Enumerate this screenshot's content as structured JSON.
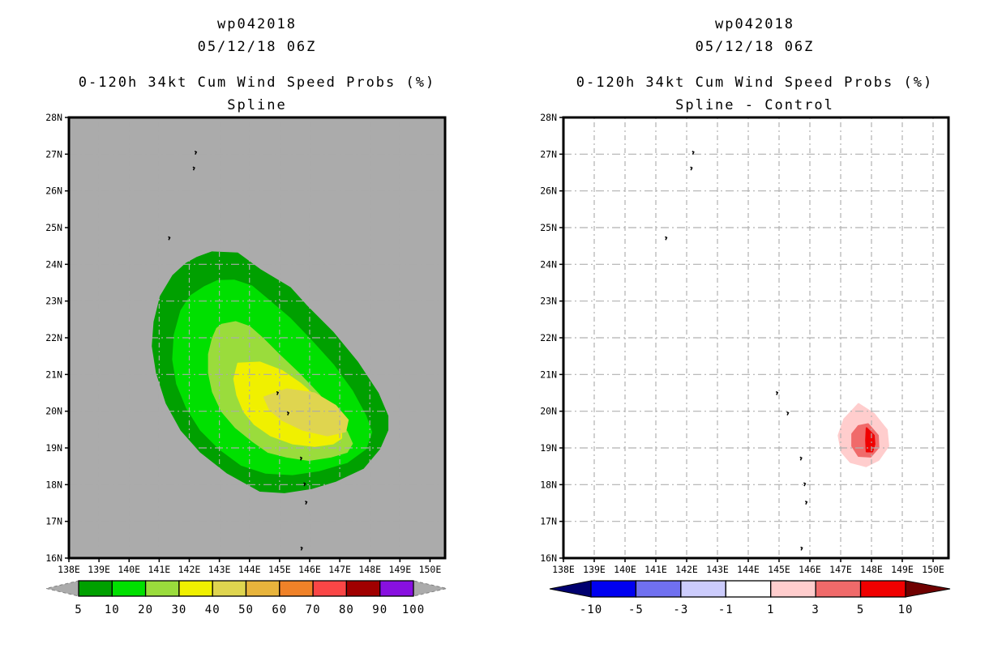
{
  "page": {
    "background": "#ffffff"
  },
  "chart_data": {
    "type": "contour-map",
    "description": "Two-panel tropical cyclone cumulative wind speed probability contour maps with colorbars",
    "lon_min": 138,
    "lon_max": 150.5,
    "lat_min": 16,
    "lat_max": 28,
    "x_tick_lons": [
      138,
      139,
      140,
      141,
      142,
      143,
      144,
      145,
      146,
      147,
      148,
      149,
      150
    ],
    "x_tick_labels": [
      "138E",
      "139E",
      "140E",
      "141E",
      "142E",
      "143E",
      "144E",
      "145E",
      "146E",
      "147E",
      "148E",
      "149E",
      "150E"
    ],
    "y_tick_lats": [
      28,
      27,
      26,
      25,
      24,
      23,
      22,
      21,
      20,
      19,
      18,
      17,
      16
    ],
    "y_tick_labels": [
      "28N",
      "27N",
      "26N",
      "25N",
      "24N",
      "23N",
      "22N",
      "21N",
      "20N",
      "19N",
      "18N",
      "17N",
      "16N"
    ],
    "grid_lons": [
      139,
      140,
      141,
      142,
      143,
      144,
      145,
      146,
      147,
      148,
      149,
      150
    ],
    "grid_lats": [
      17,
      18,
      19,
      20,
      21,
      22,
      23,
      24,
      25,
      26,
      27
    ],
    "islands": [
      [
        142.18,
        27.08
      ],
      [
        142.12,
        26.65
      ],
      [
        141.3,
        24.75
      ],
      [
        144.9,
        20.53
      ],
      [
        145.25,
        19.98
      ],
      [
        145.68,
        18.75
      ],
      [
        145.8,
        18.05
      ],
      [
        145.85,
        17.55
      ],
      [
        145.7,
        16.3
      ]
    ],
    "panels": [
      {
        "titles": {
          "line1": "wp042018",
          "line2": "05/12/18 06Z",
          "line3": "0-120h 34kt Cum Wind Speed Probs (%)",
          "line4": "Spline"
        },
        "map_background": "#ABABAB",
        "grid_color": "#ABABAB",
        "frame_color": "#000000",
        "contours": [
          {
            "level": "5",
            "color": "#00A000",
            "points": [
              [
                142.25,
                24.18
              ],
              [
                142.75,
                24.33
              ],
              [
                143.6,
                24.3
              ],
              [
                144.35,
                23.85
              ],
              [
                145.35,
                23.36
              ],
              [
                145.89,
                22.87
              ],
              [
                146.78,
                22.14
              ],
              [
                147.59,
                21.33
              ],
              [
                148.27,
                20.49
              ],
              [
                148.59,
                19.87
              ],
              [
                148.59,
                19.49
              ],
              [
                148.32,
                18.98
              ],
              [
                147.78,
                18.45
              ],
              [
                146.86,
                18.1
              ],
              [
                146.05,
                17.9
              ],
              [
                145.16,
                17.79
              ],
              [
                144.35,
                17.83
              ],
              [
                143.27,
                18.32
              ],
              [
                142.38,
                18.89
              ],
              [
                141.73,
                19.49
              ],
              [
                141.24,
                20.22
              ],
              [
                140.92,
                21.04
              ],
              [
                140.78,
                21.77
              ],
              [
                140.84,
                22.43
              ],
              [
                141.05,
                23.13
              ],
              [
                141.46,
                23.69
              ],
              [
                141.9,
                24.02
              ]
            ]
          },
          {
            "level": "10",
            "color": "#00E000",
            "points": [
              [
                142.5,
                23.38
              ],
              [
                142.95,
                23.55
              ],
              [
                143.5,
                23.56
              ],
              [
                144.08,
                23.4
              ],
              [
                144.62,
                23.03
              ],
              [
                145.35,
                22.52
              ],
              [
                146.05,
                21.92
              ],
              [
                146.78,
                21.26
              ],
              [
                147.41,
                20.55
              ],
              [
                147.86,
                19.87
              ],
              [
                148.05,
                19.43
              ],
              [
                147.86,
                18.98
              ],
              [
                147.24,
                18.61
              ],
              [
                146.32,
                18.39
              ],
              [
                145.43,
                18.28
              ],
              [
                144.54,
                18.32
              ],
              [
                143.73,
                18.54
              ],
              [
                143.0,
                18.98
              ],
              [
                142.38,
                19.49
              ],
              [
                141.92,
                20.09
              ],
              [
                141.59,
                20.75
              ],
              [
                141.46,
                21.41
              ],
              [
                141.51,
                22.08
              ],
              [
                141.73,
                22.74
              ],
              [
                142.05,
                23.14
              ]
            ]
          },
          {
            "level": "20",
            "color": "#9ADC3C",
            "points": [
              [
                143.08,
                22.36
              ],
              [
                143.54,
                22.43
              ],
              [
                144.0,
                22.3
              ],
              [
                144.43,
                21.99
              ],
              [
                144.97,
                21.55
              ],
              [
                145.62,
                21.04
              ],
              [
                146.32,
                20.44
              ],
              [
                146.86,
                19.87
              ],
              [
                147.24,
                19.43
              ],
              [
                147.41,
                19.12
              ],
              [
                147.24,
                18.89
              ],
              [
                146.7,
                18.76
              ],
              [
                145.97,
                18.67
              ],
              [
                145.24,
                18.76
              ],
              [
                144.62,
                18.89
              ],
              [
                144.08,
                19.2
              ],
              [
                143.54,
                19.56
              ],
              [
                143.08,
                20.0
              ],
              [
                142.78,
                20.53
              ],
              [
                142.65,
                21.04
              ],
              [
                142.65,
                21.55
              ],
              [
                142.78,
                21.99
              ],
              [
                142.92,
                22.25
              ]
            ]
          },
          {
            "level": "30",
            "color": "#F0F000",
            "points": [
              [
                143.62,
                21.3
              ],
              [
                144.35,
                21.33
              ],
              [
                145.08,
                21.1
              ],
              [
                145.7,
                20.75
              ],
              [
                146.32,
                20.31
              ],
              [
                146.78,
                19.87
              ],
              [
                147.05,
                19.49
              ],
              [
                147.05,
                19.27
              ],
              [
                146.78,
                19.12
              ],
              [
                146.16,
                19.05
              ],
              [
                145.43,
                19.12
              ],
              [
                144.7,
                19.34
              ],
              [
                144.16,
                19.65
              ],
              [
                143.81,
                20.0
              ],
              [
                143.59,
                20.44
              ],
              [
                143.49,
                20.88
              ]
            ]
          },
          {
            "level": "40",
            "color": "#DFD54F",
            "points": [
              [
                144.49,
                20.38
              ],
              [
                145.24,
                20.6
              ],
              [
                146.16,
                20.49
              ],
              [
                146.86,
                20.15
              ],
              [
                147.27,
                19.76
              ],
              [
                147.19,
                19.45
              ],
              [
                146.59,
                19.34
              ],
              [
                145.78,
                19.49
              ],
              [
                145.08,
                19.76
              ],
              [
                144.68,
                20.04
              ]
            ]
          }
        ],
        "colorbar": {
          "labels": [
            "5",
            "10",
            "20",
            "30",
            "40",
            "50",
            "60",
            "70",
            "80",
            "90",
            "100"
          ],
          "colors": [
            "#00A000",
            "#00E000",
            "#9ADC3C",
            "#F0F000",
            "#DFD54F",
            "#E8B43C",
            "#F08228",
            "#FA4646",
            "#A00000",
            "#8810E0"
          ],
          "left_arrow_color": "#ABABAB",
          "right_arrow_color": "#ABABAB",
          "arrow_outline": "dashed"
        }
      },
      {
        "titles": {
          "line1": "wp042018",
          "line2": "05/12/18 06Z",
          "line3": "0-120h 34kt Cum Wind Speed Probs (%)",
          "line4": "Spline - Control"
        },
        "map_background": "#FFFFFF",
        "grid_color": "#B0B0B0",
        "frame_color": "#000000",
        "contours": [
          {
            "level": "1",
            "color": "#FFCDCD",
            "points": [
              [
                147.58,
                20.2
              ],
              [
                148.08,
                19.93
              ],
              [
                148.5,
                19.49
              ],
              [
                148.55,
                19.05
              ],
              [
                148.23,
                18.67
              ],
              [
                147.82,
                18.5
              ],
              [
                147.32,
                18.61
              ],
              [
                147.03,
                18.89
              ],
              [
                146.93,
                19.34
              ],
              [
                147.11,
                19.78
              ]
            ]
          },
          {
            "level": "3",
            "color": "#F06A6A",
            "points": [
              [
                147.89,
                19.65
              ],
              [
                148.21,
                19.34
              ],
              [
                148.23,
                19.01
              ],
              [
                147.97,
                18.76
              ],
              [
                147.58,
                18.78
              ],
              [
                147.37,
                19.05
              ],
              [
                147.37,
                19.38
              ],
              [
                147.58,
                19.6
              ]
            ]
          },
          {
            "level": "5",
            "color": "#F00000",
            "points": [
              [
                147.84,
                19.54
              ],
              [
                148.08,
                19.34
              ],
              [
                148.1,
                19.1
              ],
              [
                148.03,
                18.9
              ],
              [
                147.84,
                18.9
              ],
              [
                147.82,
                19.21
              ]
            ]
          }
        ],
        "colorbar": {
          "labels": [
            "-10",
            "-5",
            "-3",
            "-1",
            "1",
            "3",
            "5",
            "10"
          ],
          "colors": [
            "#0000F0",
            "#7070F0",
            "#CCCCFC",
            "#FFFFFF",
            "#FFCDCD",
            "#F06A6A",
            "#F00000"
          ],
          "left_arrow_color": "#000070",
          "right_arrow_color": "#700000",
          "arrow_outline": "solid"
        }
      }
    ]
  }
}
